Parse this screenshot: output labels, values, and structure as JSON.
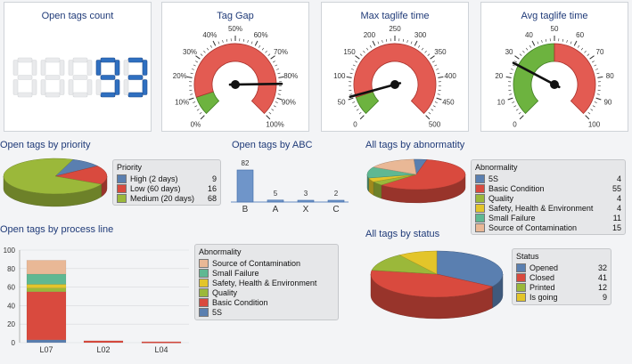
{
  "panels": {
    "open_tags_count": {
      "title": "Open tags count",
      "digits": "8.8.8.93",
      "value": 93
    },
    "tag_gap": {
      "title": "Tag Gap",
      "unit": "%",
      "ticks": [
        "0%",
        "10%",
        "20%",
        "30%",
        "40%",
        "50%",
        "60%",
        "70%",
        "80%",
        "90%",
        "100%"
      ],
      "needle_value": 83,
      "green_to": 10,
      "min": 0,
      "max": 100
    },
    "max_taglife": {
      "title": "Max taglife time",
      "ticks": [
        "0",
        "50",
        "100",
        "150",
        "200",
        "250",
        "300",
        "350",
        "400",
        "450",
        "500"
      ],
      "needle_value": 55,
      "green_to": 50,
      "min": 0,
      "max": 500
    },
    "avg_taglife": {
      "title": "Avg taglife time",
      "ticks": [
        "0",
        "10",
        "20",
        "30",
        "40",
        "50",
        "60",
        "70",
        "80",
        "90",
        "100"
      ],
      "needle_value": 27,
      "green_to": 50,
      "min": 0,
      "max": 100
    }
  },
  "open_tags_by_priority": {
    "title": "Open tags by priority",
    "legend_title": "Priority",
    "items": [
      {
        "label": "High (2 days)",
        "value": "9",
        "color": "#5a7fb0"
      },
      {
        "label": "Low (60 days)",
        "value": "16",
        "color": "#d94a3e"
      },
      {
        "label": "Medium (20 days)",
        "value": "68",
        "color": "#9bb83a"
      }
    ]
  },
  "open_tags_by_abc": {
    "title": "Open tags by ABC",
    "bars": [
      {
        "label": "B",
        "value": "82"
      },
      {
        "label": "A",
        "value": "5"
      },
      {
        "label": "X",
        "value": "3"
      },
      {
        "label": "C",
        "value": "2"
      }
    ]
  },
  "all_tags_by_abnormality": {
    "title": "All tags by abnormatity",
    "legend_title": "Abnormality",
    "items": [
      {
        "label": "5S",
        "value": "4",
        "color": "#5a7fb0"
      },
      {
        "label": "Basic Condition",
        "value": "55",
        "color": "#d94a3e"
      },
      {
        "label": "Quality",
        "value": "4",
        "color": "#9bb83a"
      },
      {
        "label": "Safety, Health & Environment",
        "value": "4",
        "color": "#e3c52a"
      },
      {
        "label": "Small Failure",
        "value": "11",
        "color": "#5fb892"
      },
      {
        "label": "Source of Contamination",
        "value": "15",
        "color": "#e9b896"
      }
    ]
  },
  "open_tags_by_process_line": {
    "title": "Open tags by process line",
    "legend_title": "Abnormality",
    "legend": [
      {
        "label": "Source of Contamination",
        "color": "#e9b896"
      },
      {
        "label": "Small Failure",
        "color": "#5fb892"
      },
      {
        "label": "Safety, Health & Environment",
        "color": "#e3c52a"
      },
      {
        "label": "Quality",
        "color": "#9bb83a"
      },
      {
        "label": "Basic Condition",
        "color": "#d94a3e"
      },
      {
        "label": "5S",
        "color": "#5a7fb0"
      }
    ],
    "y_ticks": [
      "0",
      "20",
      "40",
      "60",
      "80",
      "100"
    ]
  },
  "all_tags_by_status": {
    "title": "All tags by status",
    "legend_title": "Status",
    "items": [
      {
        "label": "Opened",
        "value": "32",
        "color": "#5a7fb0"
      },
      {
        "label": "Closed",
        "value": "41",
        "color": "#d94a3e"
      },
      {
        "label": "Printed",
        "value": "12",
        "color": "#9bb83a"
      },
      {
        "label": "Is going",
        "value": "9",
        "color": "#e3c52a"
      }
    ]
  },
  "chart_data": [
    {
      "type": "pie",
      "title": "Open tags by priority",
      "categories": [
        "High (2 days)",
        "Low (60 days)",
        "Medium (20 days)"
      ],
      "values": [
        9,
        16,
        68
      ]
    },
    {
      "type": "bar",
      "title": "Open tags by ABC",
      "categories": [
        "B",
        "A",
        "X",
        "C"
      ],
      "values": [
        82,
        5,
        3,
        2
      ]
    },
    {
      "type": "pie",
      "title": "All tags by abnormatity",
      "categories": [
        "5S",
        "Basic Condition",
        "Quality",
        "Safety, Health & Environment",
        "Small Failure",
        "Source of Contamination"
      ],
      "values": [
        4,
        55,
        4,
        4,
        11,
        15
      ]
    },
    {
      "type": "bar",
      "title": "Open tags by process line",
      "categories": [
        "L07",
        "L02",
        "L04"
      ],
      "series": [
        {
          "name": "5S",
          "values": [
            3,
            0,
            0
          ]
        },
        {
          "name": "Basic Condition",
          "values": [
            52,
            2,
            1
          ]
        },
        {
          "name": "Quality",
          "values": [
            4,
            0,
            0
          ]
        },
        {
          "name": "Safety, Health & Environment",
          "values": [
            4,
            0,
            0
          ]
        },
        {
          "name": "Small Failure",
          "values": [
            11,
            0,
            0
          ]
        },
        {
          "name": "Source of Contamination",
          "values": [
            15,
            0,
            0
          ]
        }
      ],
      "ylim": [
        0,
        100
      ]
    },
    {
      "type": "pie",
      "title": "All tags by status",
      "categories": [
        "Opened",
        "Closed",
        "Printed",
        "Is going"
      ],
      "values": [
        32,
        41,
        12,
        9
      ]
    }
  ]
}
